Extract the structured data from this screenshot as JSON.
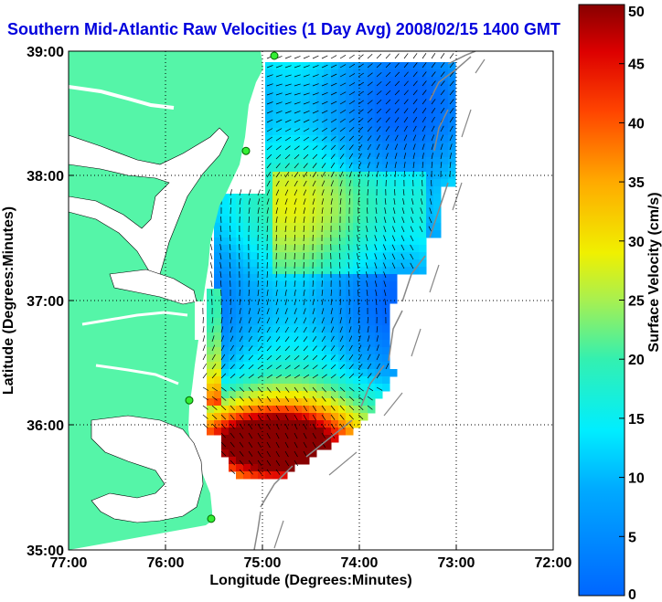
{
  "title": "Southern Mid-Atlantic Raw Velocities (1 Day Avg) 2008/02/15 1400 GMT",
  "xlabel": "Longitude (Degrees:Minutes)",
  "ylabel": "Latitude (Degrees:Minutes)",
  "colorbar_label": "Surface Velocity (cm/s)",
  "x_ticks": [
    "77:00",
    "76:00",
    "75:00",
    "74:00",
    "73:00",
    "72:00"
  ],
  "y_ticks": [
    "39:00",
    "38:00",
    "37:00",
    "36:00",
    "35:00"
  ],
  "colorbar_ticks": [
    "0",
    "5",
    "10",
    "15",
    "20",
    "25",
    "30",
    "35",
    "40",
    "45",
    "50"
  ],
  "map": {
    "lon_range": [
      -77,
      -72
    ],
    "lat_range": [
      35,
      39
    ],
    "colorbar_range_cm_s": [
      0,
      50
    ],
    "grid": "dotted",
    "land_color": "#55f5a8",
    "colormap": "jet",
    "site_markers_lat": [
      39.0,
      38.2,
      36.2,
      35.25
    ]
  }
}
